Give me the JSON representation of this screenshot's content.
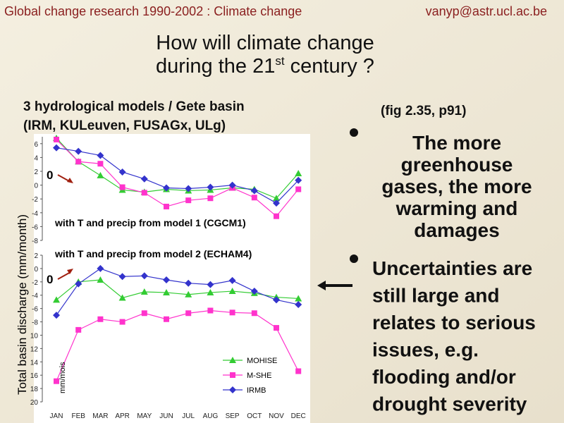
{
  "slide": {
    "header_left": "Global change research 1990-2002  :  Climate change",
    "header_right": "vanyp@astr.ucl.ac.be",
    "title_line1": "How will climate change",
    "title_line2_start": "during the 21",
    "title_sup": "st",
    "title_line2_end": " century ?",
    "subtitle1": "3 hydrological models / Gete basin",
    "subtitle2": "(IRM, KULeuven, FUSAGx, ULg)",
    "fig_ref": "(fig 2.35, p91)",
    "ylabel": "Total basin discharge (mm/month)",
    "bullet1": [
      "The more",
      "greenhouse",
      "gases, the more",
      "warming and",
      "damages"
    ],
    "bullet2": [
      "Uncertainties are",
      "still large and",
      "relates to serious",
      "issues, e.g.",
      "flooding and/or",
      "drought severity"
    ]
  },
  "chart_data": [
    {
      "type": "line",
      "annotation": "with T and precip from model 1 (CGCM1)",
      "zero_label": "0",
      "ylim": [
        -8,
        7
      ],
      "yticks": [
        6,
        4,
        2,
        0,
        -2,
        -4,
        -6,
        -8
      ],
      "series": [
        {
          "color": "#33cc33",
          "marker": "triangle",
          "values": [
            6.8,
            3.4,
            1.4,
            -0.7,
            -1.0,
            -0.6,
            -0.8,
            -0.7,
            -0.4,
            -0.6,
            -1.9,
            1.7
          ]
        },
        {
          "color": "#ff33cc",
          "marker": "square",
          "values": [
            6.6,
            3.4,
            3.1,
            -0.3,
            -1.1,
            -3.1,
            -2.2,
            -1.9,
            -0.4,
            -1.8,
            -4.5,
            -0.6
          ]
        },
        {
          "color": "#3333cc",
          "marker": "diamond",
          "values": [
            5.4,
            4.9,
            4.3,
            1.9,
            0.9,
            -0.4,
            -0.5,
            -0.3,
            0,
            -0.8,
            -2.6,
            0.7
          ]
        }
      ]
    },
    {
      "type": "line",
      "annotation": "with T and precip from model 2 (ECHAM4)",
      "zero_label": "0",
      "y_unit": "mm/mois",
      "legend": "lower right",
      "categories": [
        "JAN",
        "FEB",
        "MAR",
        "APR",
        "MAY",
        "JUN",
        "JUL",
        "AUG",
        "SEP",
        "OCT",
        "NOV",
        "DEC"
      ],
      "ylim": [
        -20,
        2
      ],
      "yticks": [
        2,
        0,
        -2,
        -4,
        -6,
        -8,
        {
          "value": -10,
          "label": "10"
        },
        {
          "value": -12,
          "label": "12"
        },
        {
          "value": -14,
          "label": "14"
        },
        {
          "value": -16,
          "label": "16"
        },
        {
          "value": -18,
          "label": "18"
        },
        {
          "value": -20,
          "label": "20"
        }
      ],
      "series": [
        {
          "name": "MOHISE",
          "color": "#33cc33",
          "marker": "triangle",
          "values": [
            -4.7,
            -2.0,
            -1.7,
            -4.4,
            -3.5,
            -3.6,
            -3.9,
            -3.6,
            -3.4,
            -3.7,
            -4.3,
            -4.5
          ]
        },
        {
          "name": "M-SHE",
          "color": "#ff33cc",
          "marker": "square",
          "values": [
            -16.9,
            -9.2,
            -7.6,
            -8.0,
            -6.7,
            -7.6,
            -6.7,
            -6.3,
            -6.6,
            -6.7,
            -8.9,
            -15.4
          ]
        },
        {
          "name": "IRMB",
          "color": "#3333cc",
          "marker": "diamond",
          "values": [
            -7.0,
            -2.3,
            0,
            -1.2,
            -1.1,
            -1.7,
            -2.2,
            -2.4,
            -1.8,
            -3.4,
            -4.7,
            -5.4
          ]
        }
      ]
    }
  ]
}
